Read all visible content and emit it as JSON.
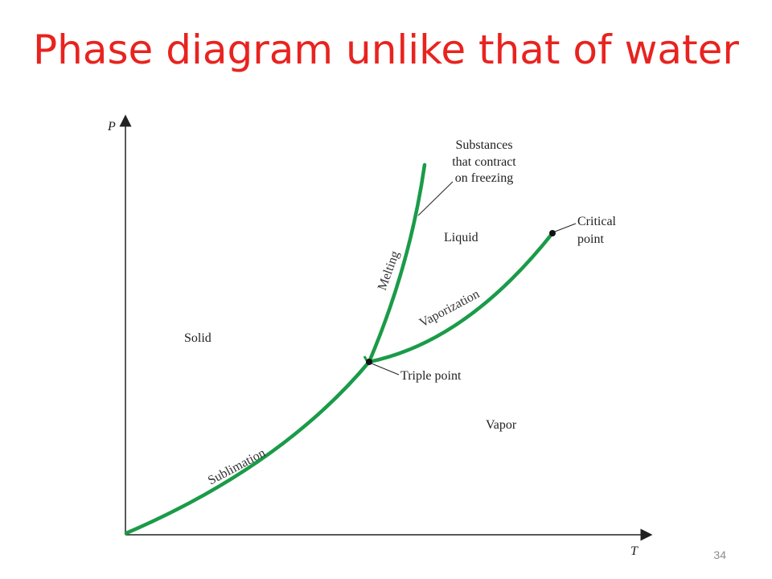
{
  "slide": {
    "title": "Phase diagram unlike that of water",
    "page_number": "34"
  },
  "diagram": {
    "axes": {
      "y_label": "P",
      "x_label": "T"
    },
    "regions": {
      "solid": "Solid",
      "liquid": "Liquid",
      "vapor": "Vapor"
    },
    "curves": {
      "melting": "Melting",
      "vaporization": "Vaporization",
      "sublimation": "Sublimation"
    },
    "callouts": {
      "substances_line1": "Substances",
      "substances_line2": "that contract",
      "substances_line3": "on freezing",
      "critical_line1": "Critical",
      "critical_line2": "point",
      "triple_point": "Triple point"
    },
    "colors": {
      "curve": "#1a9b48",
      "title": "#e8231f",
      "axis": "#222222"
    }
  }
}
